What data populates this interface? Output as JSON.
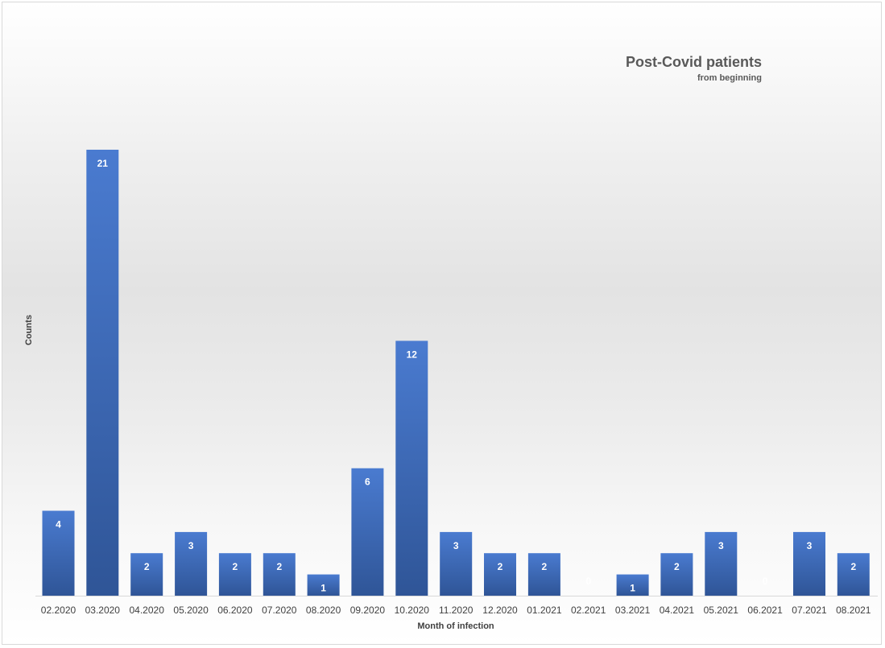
{
  "chart_data": {
    "type": "bar",
    "title": "Post-Covid patients",
    "subtitle": "from beginning",
    "xlabel": "Month of infection",
    "ylabel": "Counts",
    "categories": [
      "02.2020",
      "03.2020",
      "04.2020",
      "05.2020",
      "06.2020",
      "07.2020",
      "08.2020",
      "09.2020",
      "10.2020",
      "11.2020",
      "12.2020",
      "01.2021",
      "02.2021",
      "03.2021",
      "04.2021",
      "05.2021",
      "06.2021",
      "07.2021",
      "08.2021"
    ],
    "values": [
      4,
      21,
      2,
      3,
      2,
      2,
      1,
      6,
      12,
      3,
      2,
      2,
      0,
      1,
      2,
      3,
      0,
      3,
      2
    ],
    "ylim": [
      0,
      21
    ],
    "grid": false,
    "legend": "none",
    "bar_color": "#4472c4",
    "data_label_color": "#ffffff"
  }
}
